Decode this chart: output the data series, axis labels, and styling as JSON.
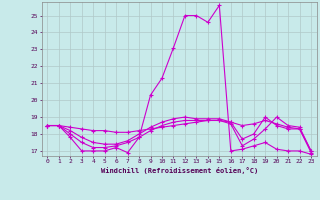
{
  "xlabel": "Windchill (Refroidissement éolien,°C)",
  "background_color": "#c8eaea",
  "grid_color": "#b0c8c8",
  "line_color": "#cc00cc",
  "xlim": [
    -0.5,
    23.5
  ],
  "ylim": [
    16.7,
    25.8
  ],
  "yticks": [
    17,
    18,
    19,
    20,
    21,
    22,
    23,
    24,
    25
  ],
  "xticks": [
    0,
    1,
    2,
    3,
    4,
    5,
    6,
    7,
    8,
    9,
    10,
    11,
    12,
    13,
    14,
    15,
    16,
    17,
    18,
    19,
    20,
    21,
    22,
    23
  ],
  "lines": [
    {
      "x": [
        0,
        1,
        2,
        3,
        4,
        5,
        6,
        7,
        8,
        9,
        10,
        11,
        12,
        13,
        14,
        15,
        16,
        17,
        18,
        19,
        20,
        21,
        22,
        23
      ],
      "y": [
        18.5,
        18.5,
        17.8,
        17.0,
        17.0,
        17.0,
        17.2,
        16.9,
        17.8,
        20.3,
        21.3,
        23.1,
        25.0,
        25.0,
        24.6,
        25.6,
        17.0,
        17.1,
        17.3,
        17.5,
        17.1,
        17.0,
        17.0,
        16.8
      ]
    },
    {
      "x": [
        0,
        1,
        2,
        3,
        4,
        5,
        6,
        7,
        8,
        9,
        10,
        11,
        12,
        13,
        14,
        15,
        16,
        17,
        18,
        19,
        20,
        21,
        22,
        23
      ],
      "y": [
        18.5,
        18.5,
        18.4,
        18.3,
        18.2,
        18.2,
        18.1,
        18.1,
        18.2,
        18.3,
        18.4,
        18.5,
        18.6,
        18.7,
        18.8,
        18.8,
        18.7,
        18.5,
        18.6,
        18.8,
        18.6,
        18.4,
        18.3,
        17.0
      ]
    },
    {
      "x": [
        0,
        1,
        2,
        3,
        4,
        5,
        6,
        7,
        8,
        9,
        10,
        11,
        12,
        13,
        14,
        15,
        16,
        17,
        18,
        19,
        20,
        21,
        22,
        23
      ],
      "y": [
        18.5,
        18.5,
        18.0,
        17.5,
        17.2,
        17.2,
        17.3,
        17.5,
        17.8,
        18.2,
        18.5,
        18.7,
        18.8,
        18.8,
        18.8,
        18.8,
        18.6,
        17.3,
        17.7,
        18.3,
        19.0,
        18.5,
        18.4,
        17.0
      ]
    },
    {
      "x": [
        0,
        1,
        2,
        3,
        4,
        5,
        6,
        7,
        8,
        9,
        10,
        11,
        12,
        13,
        14,
        15,
        16,
        17,
        18,
        19,
        20,
        21,
        22,
        23
      ],
      "y": [
        18.5,
        18.5,
        18.2,
        17.8,
        17.5,
        17.4,
        17.4,
        17.6,
        18.0,
        18.4,
        18.7,
        18.9,
        19.0,
        18.9,
        18.9,
        18.9,
        18.7,
        17.7,
        18.0,
        19.0,
        18.5,
        18.3,
        18.3,
        16.9
      ]
    }
  ]
}
